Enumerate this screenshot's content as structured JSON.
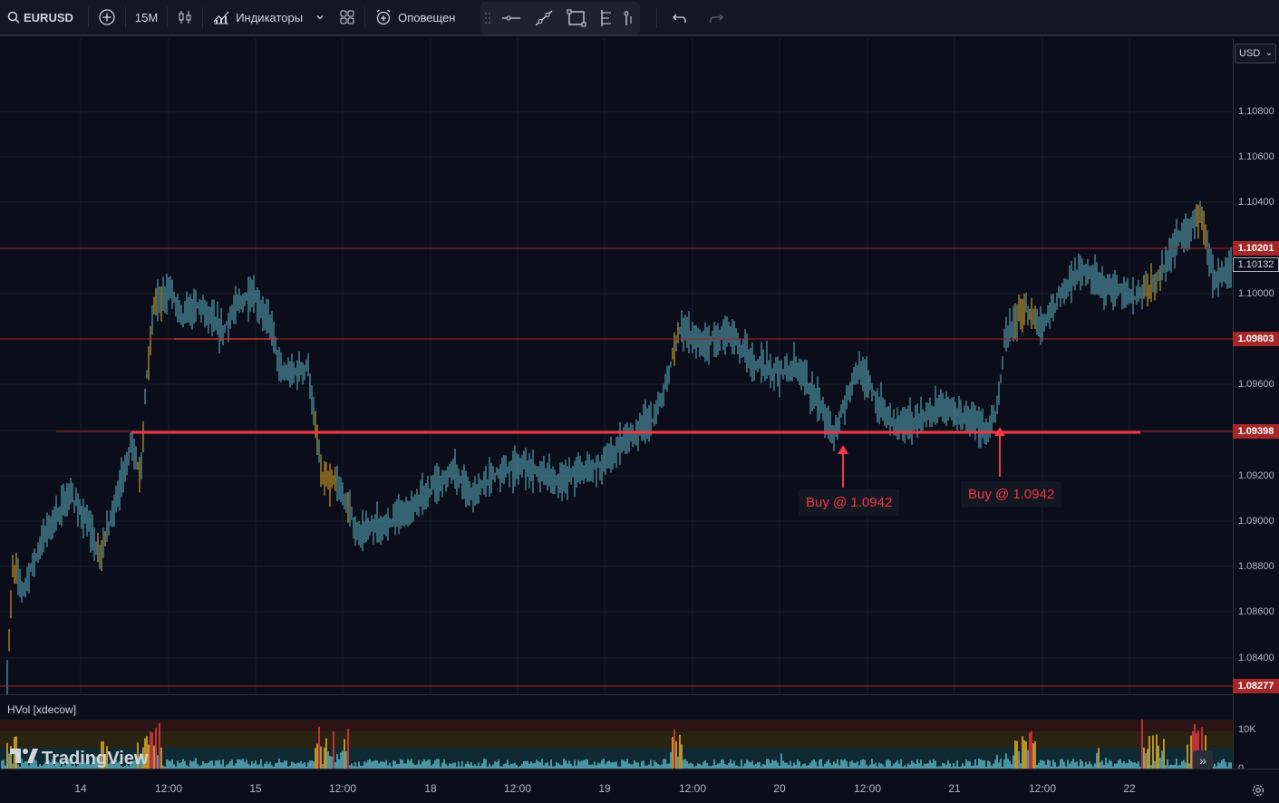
{
  "toolbar": {
    "symbol": "EURUSD",
    "interval": "15M",
    "indicators_label": "Индикаторы",
    "alerts_label": "Оповещен"
  },
  "price_axis": {
    "currency": "USD",
    "ticks": [
      "1.10800",
      "1.10600",
      "1.10400",
      "1.10000",
      "1.09600",
      "1.09200",
      "1.09000",
      "1.08800",
      "1.08600",
      "1.08400"
    ],
    "tags": {
      "level_top": "1.10201",
      "current": "1.10132",
      "level_mid": "1.09803",
      "level_support": "1.09398",
      "level_bottom": "1.08277"
    }
  },
  "annotations": [
    {
      "text": "Buy @ 1.0942"
    },
    {
      "text": "Buy @ 1.0942"
    }
  ],
  "volume_pane": {
    "title": "HVol [xdecow]",
    "ticks": [
      "10K",
      "0"
    ]
  },
  "time_axis": [
    "14",
    "12:00",
    "15",
    "12:00",
    "18",
    "12:00",
    "19",
    "12:00",
    "20",
    "12:00",
    "21",
    "12:00",
    "22"
  ],
  "logo": {
    "text": "TradingView"
  },
  "colors": {
    "background": "#0b0e1a",
    "level_line": "#f23645",
    "candle": "#5fb8c9",
    "highlight": "#f0b429"
  }
}
